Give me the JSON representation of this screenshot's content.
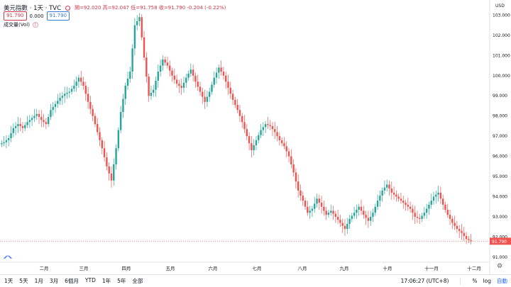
{
  "legend": {
    "symbol": "美元指數 · 1天 · TVC",
    "ohlc": "開=92.020  高=92.047  低=91.758  收=91.790  -0.204 (-0.22%)",
    "last_box": "91.790",
    "change_box": "0.000",
    "price_box": "91.790",
    "volume_label": "成交量(Vol)"
  },
  "axis": {
    "currency": "USD",
    "price_ticks": [
      "103.000",
      "102.000",
      "101.000",
      "100.000",
      "99.000",
      "98.000",
      "97.000",
      "96.000",
      "95.000",
      "94.000",
      "93.000",
      "92.000",
      "91.000"
    ],
    "time_ticks": [
      "二月",
      "三月",
      "四月",
      "五月",
      "六月",
      "七月",
      "八月",
      "九月",
      "十月",
      "十一月",
      "十二月"
    ],
    "current_price": "91.790"
  },
  "bottom": {
    "ranges": [
      "1天",
      "5天",
      "1月",
      "3月",
      "6個月",
      "YTD",
      "1年",
      "5年",
      "全部"
    ],
    "time": "17:06:27 (UTC+8)",
    "percent": "%",
    "log": "log",
    "auto": "自動"
  },
  "colors": {
    "up": "#26a69a",
    "down": "#ef5350"
  },
  "chart_data": {
    "type": "candlestick",
    "ylim": [
      90.75,
      103.4
    ],
    "close_series": [
      96.7,
      96.9,
      97.4,
      97.6,
      97.4,
      97.7,
      97.9,
      98.1,
      97.8,
      97.6,
      98.3,
      98.6,
      98.9,
      99.1,
      99.2,
      99.5,
      99.9,
      99.5,
      98.7,
      98.0,
      97.2,
      96.4,
      95.5,
      94.8,
      96.4,
      98.2,
      99.5,
      100.2,
      102.5,
      102.9,
      100.9,
      99.0,
      99.3,
      100.2,
      100.8,
      100.5,
      100.0,
      99.6,
      99.4,
      99.9,
      100.3,
      99.7,
      99.2,
      98.7,
      99.2,
      99.9,
      100.4,
      100.0,
      99.4,
      98.8,
      98.3,
      97.7,
      97.0,
      96.3,
      96.8,
      97.3,
      97.6,
      97.5,
      97.2,
      96.8,
      96.5,
      96.0,
      95.2,
      94.3,
      93.8,
      93.2,
      93.4,
      93.9,
      93.5,
      93.1,
      93.3,
      93.0,
      92.7,
      92.4,
      92.9,
      93.2,
      93.5,
      93.1,
      92.8,
      93.2,
      93.8,
      94.3,
      94.6,
      94.2,
      94.0,
      93.8,
      93.6,
      93.4,
      93.0,
      92.9,
      93.2,
      93.6,
      94.0,
      94.2,
      93.6,
      93.1,
      92.7,
      92.4,
      92.2,
      91.9,
      91.79
    ]
  }
}
